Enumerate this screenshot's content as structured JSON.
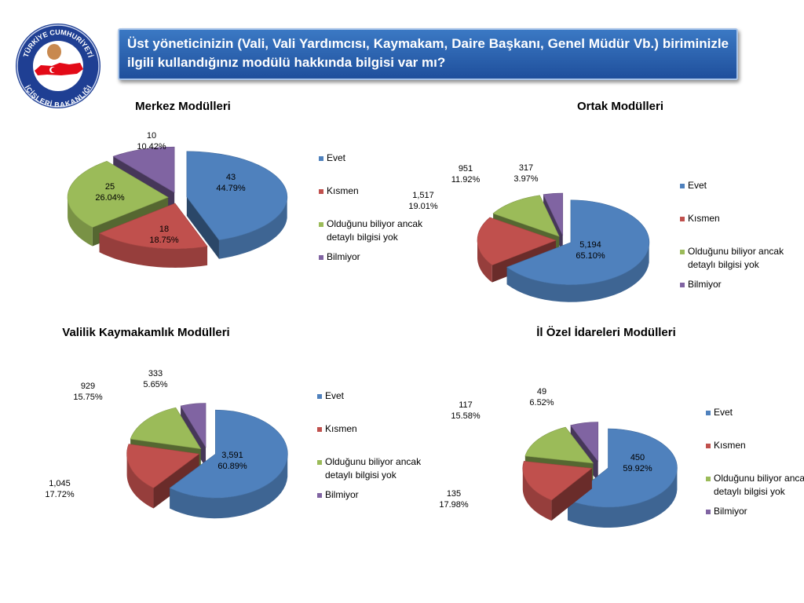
{
  "header": {
    "title": "Üst yöneticinizin (Vali, Vali Yardımcısı, Kaymakam, Daire Başkanı, Genel Müdür Vb.) biriminizle ilgili kullandığınız modülü hakkında bilgisi var mı?",
    "logo_top_text": "TÜRKİYE CUMHURİYETİ",
    "logo_bottom_text": "İÇİŞLERİ BAKANLIĞI"
  },
  "chart_data": [
    {
      "type": "pie",
      "title": "Merkez Modülleri",
      "categories": [
        "Evet",
        "Kısmen",
        "Olduğunu biliyor ancak detaylı bilgisi yok",
        "Bilmiyor"
      ],
      "values": [
        43,
        18,
        25,
        10
      ],
      "value_labels": [
        "43",
        "18",
        "25",
        "10"
      ],
      "percent_labels": [
        "44.79%",
        "18.75%",
        "26.04%",
        "10.42%"
      ],
      "legend_lines": [
        [
          "Evet"
        ],
        [
          "Kısmen"
        ],
        [
          "Olduğunu biliyor ancak",
          "detaylı bilgisi yok"
        ],
        [
          "Bilmiyor"
        ]
      ],
      "colors": [
        "#4f81bd",
        "#c0504d",
        "#9bbb59",
        "#8064a2"
      ],
      "legend": "right"
    },
    {
      "type": "pie",
      "title": "Ortak Modülleri",
      "categories": [
        "Evet",
        "Kısmen",
        "Olduğunu biliyor ancak detaylı bilgisi yok",
        "Bilmiyor"
      ],
      "values": [
        5194,
        1517,
        951,
        317
      ],
      "value_labels": [
        "5,194",
        "1,517",
        "951",
        "317"
      ],
      "percent_labels": [
        "65.10%",
        "19.01%",
        "11.92%",
        "3.97%"
      ],
      "legend_lines": [
        [
          "Evet"
        ],
        [
          "Kısmen"
        ],
        [
          "Olduğunu biliyor ancak",
          "detaylı bilgisi yok"
        ],
        [
          "Bilmiyor"
        ]
      ],
      "colors": [
        "#4f81bd",
        "#c0504d",
        "#9bbb59",
        "#8064a2"
      ],
      "legend": "right"
    },
    {
      "type": "pie",
      "title": "Valilik Kaymakamlık Modülleri",
      "categories": [
        "Evet",
        "Kısmen",
        "Olduğunu biliyor ancak detaylı bilgisi yok",
        "Bilmiyor"
      ],
      "values": [
        3591,
        1045,
        929,
        333
      ],
      "value_labels": [
        "3,591",
        "1,045",
        "929",
        "333"
      ],
      "percent_labels": [
        "60.89%",
        "17.72%",
        "15.75%",
        "5.65%"
      ],
      "legend_lines": [
        [
          "Evet"
        ],
        [
          "Kısmen"
        ],
        [
          "Olduğunu biliyor ancak",
          "detaylı bilgisi yok"
        ],
        [
          "Bilmiyor"
        ]
      ],
      "colors": [
        "#4f81bd",
        "#c0504d",
        "#9bbb59",
        "#8064a2"
      ],
      "legend": "right"
    },
    {
      "type": "pie",
      "title": "İl Özel İdareleri Modülleri",
      "categories": [
        "Evet",
        "Kısmen",
        "Olduğunu biliyor ancak detaylı bilgisi yok",
        "Bilmiyor"
      ],
      "values": [
        450,
        135,
        117,
        49
      ],
      "value_labels": [
        "450",
        "135",
        "117",
        "49"
      ],
      "percent_labels": [
        "59.92%",
        "17.98%",
        "15.58%",
        "6.52%"
      ],
      "legend_lines": [
        [
          "Evet"
        ],
        [
          "Kısmen"
        ],
        [
          "Olduğunu biliyor ancak",
          "detaylı bilgisi yok"
        ],
        [
          "Bilmiyor"
        ]
      ],
      "colors": [
        "#4f81bd",
        "#c0504d",
        "#9bbb59",
        "#8064a2"
      ],
      "legend": "right"
    }
  ]
}
